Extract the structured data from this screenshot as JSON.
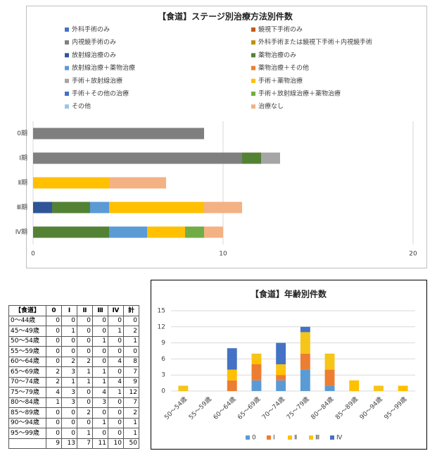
{
  "chart_data": [
    {
      "type": "bar",
      "orientation": "horizontal",
      "stacked": true,
      "title": "【食道】ステージ別治療方法別件数",
      "categories": [
        "0期",
        "Ⅰ期",
        "Ⅱ期",
        "Ⅲ期",
        "Ⅳ期"
      ],
      "xlim": [
        0,
        20
      ],
      "xticks": [
        0,
        10,
        20
      ],
      "grid": true,
      "legend": "top",
      "series": [
        {
          "name": "外科手術のみ",
          "color": "#4472c4",
          "values": [
            0,
            0,
            0,
            0,
            0
          ]
        },
        {
          "name": "鏡視下手術のみ",
          "color": "#c55a11",
          "values": [
            0,
            0,
            0,
            0,
            0
          ]
        },
        {
          "name": "内視鏡手術のみ",
          "color": "#7f7f7f",
          "values": [
            9,
            11,
            0,
            0,
            0
          ]
        },
        {
          "name": "外科手術または鏡視下手術＋内視鏡手術",
          "color": "#bf9000",
          "values": [
            0,
            0,
            0,
            0,
            0
          ]
        },
        {
          "name": "放射線治療のみ",
          "color": "#2f5597",
          "values": [
            0,
            0,
            0,
            1,
            0
          ]
        },
        {
          "name": "薬物治療のみ",
          "color": "#548235",
          "values": [
            0,
            1,
            0,
            2,
            4
          ]
        },
        {
          "name": "放射線治療＋薬物治療",
          "color": "#5b9bd5",
          "values": [
            0,
            0,
            0,
            1,
            2
          ]
        },
        {
          "name": "薬物治療＋その他",
          "color": "#ed7d31",
          "values": [
            0,
            0,
            0,
            0,
            0
          ]
        },
        {
          "name": "手術＋放射線治療",
          "color": "#a5a5a5",
          "values": [
            0,
            1,
            0,
            0,
            0
          ]
        },
        {
          "name": "手術＋薬物治療",
          "color": "#ffc000",
          "values": [
            0,
            0,
            4,
            5,
            2
          ]
        },
        {
          "name": "手術＋その他の治療",
          "color": "#4472c4",
          "values": [
            0,
            0,
            0,
            0,
            0
          ]
        },
        {
          "name": "手術＋放射線治療＋薬物治療",
          "color": "#70ad47",
          "values": [
            0,
            0,
            0,
            0,
            1
          ]
        },
        {
          "name": "その他",
          "color": "#9dc3e6",
          "values": [
            0,
            0,
            0,
            0,
            0
          ]
        },
        {
          "name": "治療なし",
          "color": "#f4b183",
          "values": [
            0,
            0,
            3,
            2,
            1
          ]
        }
      ]
    },
    {
      "type": "bar",
      "orientation": "vertical",
      "stacked": true,
      "title": "【食道】年齢別件数",
      "categories": [
        "50～54歳",
        "55～59歳",
        "60～64歳",
        "65～69歳",
        "70～74歳",
        "75～79歳",
        "80～84歳",
        "85～89歳",
        "90～94歳",
        "95～99歳"
      ],
      "ylim": [
        0,
        15
      ],
      "yticks": [
        0,
        3,
        6,
        9,
        12,
        15
      ],
      "grid": true,
      "legend": "bottom",
      "series": [
        {
          "name": "0",
          "color": "#5b9bd5",
          "values": [
            0,
            0,
            0,
            2,
            2,
            4,
            1,
            0,
            0,
            0
          ]
        },
        {
          "name": "Ⅰ",
          "color": "#ed7d31",
          "values": [
            0,
            0,
            2,
            3,
            1,
            3,
            3,
            0,
            0,
            0
          ]
        },
        {
          "name": "Ⅱ",
          "color": "#ffc000",
          "values": [
            0,
            0,
            2,
            1,
            1,
            0,
            0,
            2,
            0,
            1
          ]
        },
        {
          "name": "Ⅲ",
          "color": "#f5c518",
          "values": [
            1,
            0,
            0,
            1,
            1,
            4,
            3,
            0,
            1,
            0
          ]
        },
        {
          "name": "Ⅳ",
          "color": "#4472c4",
          "values": [
            0,
            0,
            4,
            0,
            4,
            1,
            0,
            0,
            0,
            0
          ]
        }
      ]
    }
  ],
  "table": {
    "header": [
      "【食道】",
      "0",
      "Ⅰ",
      "Ⅱ",
      "Ⅲ",
      "Ⅳ",
      "計"
    ],
    "rows": [
      [
        "0～44歳",
        0,
        0,
        0,
        0,
        0,
        0
      ],
      [
        "45～49歳",
        0,
        1,
        0,
        0,
        1,
        2
      ],
      [
        "50～54歳",
        0,
        0,
        0,
        1,
        0,
        1
      ],
      [
        "55～59歳",
        0,
        0,
        0,
        0,
        0,
        0
      ],
      [
        "60～64歳",
        0,
        2,
        2,
        0,
        4,
        8
      ],
      [
        "65～69歳",
        2,
        3,
        1,
        1,
        0,
        7
      ],
      [
        "70～74歳",
        2,
        1,
        1,
        1,
        4,
        9
      ],
      [
        "75～79歳",
        4,
        3,
        0,
        4,
        1,
        12
      ],
      [
        "80～84歳",
        1,
        3,
        0,
        3,
        0,
        7
      ],
      [
        "85～89歳",
        0,
        0,
        2,
        0,
        0,
        2
      ],
      [
        "90～94歳",
        0,
        0,
        0,
        1,
        0,
        1
      ],
      [
        "95～99歳",
        0,
        0,
        1,
        0,
        0,
        1
      ]
    ],
    "total": [
      9,
      13,
      7,
      11,
      10,
      50
    ]
  }
}
